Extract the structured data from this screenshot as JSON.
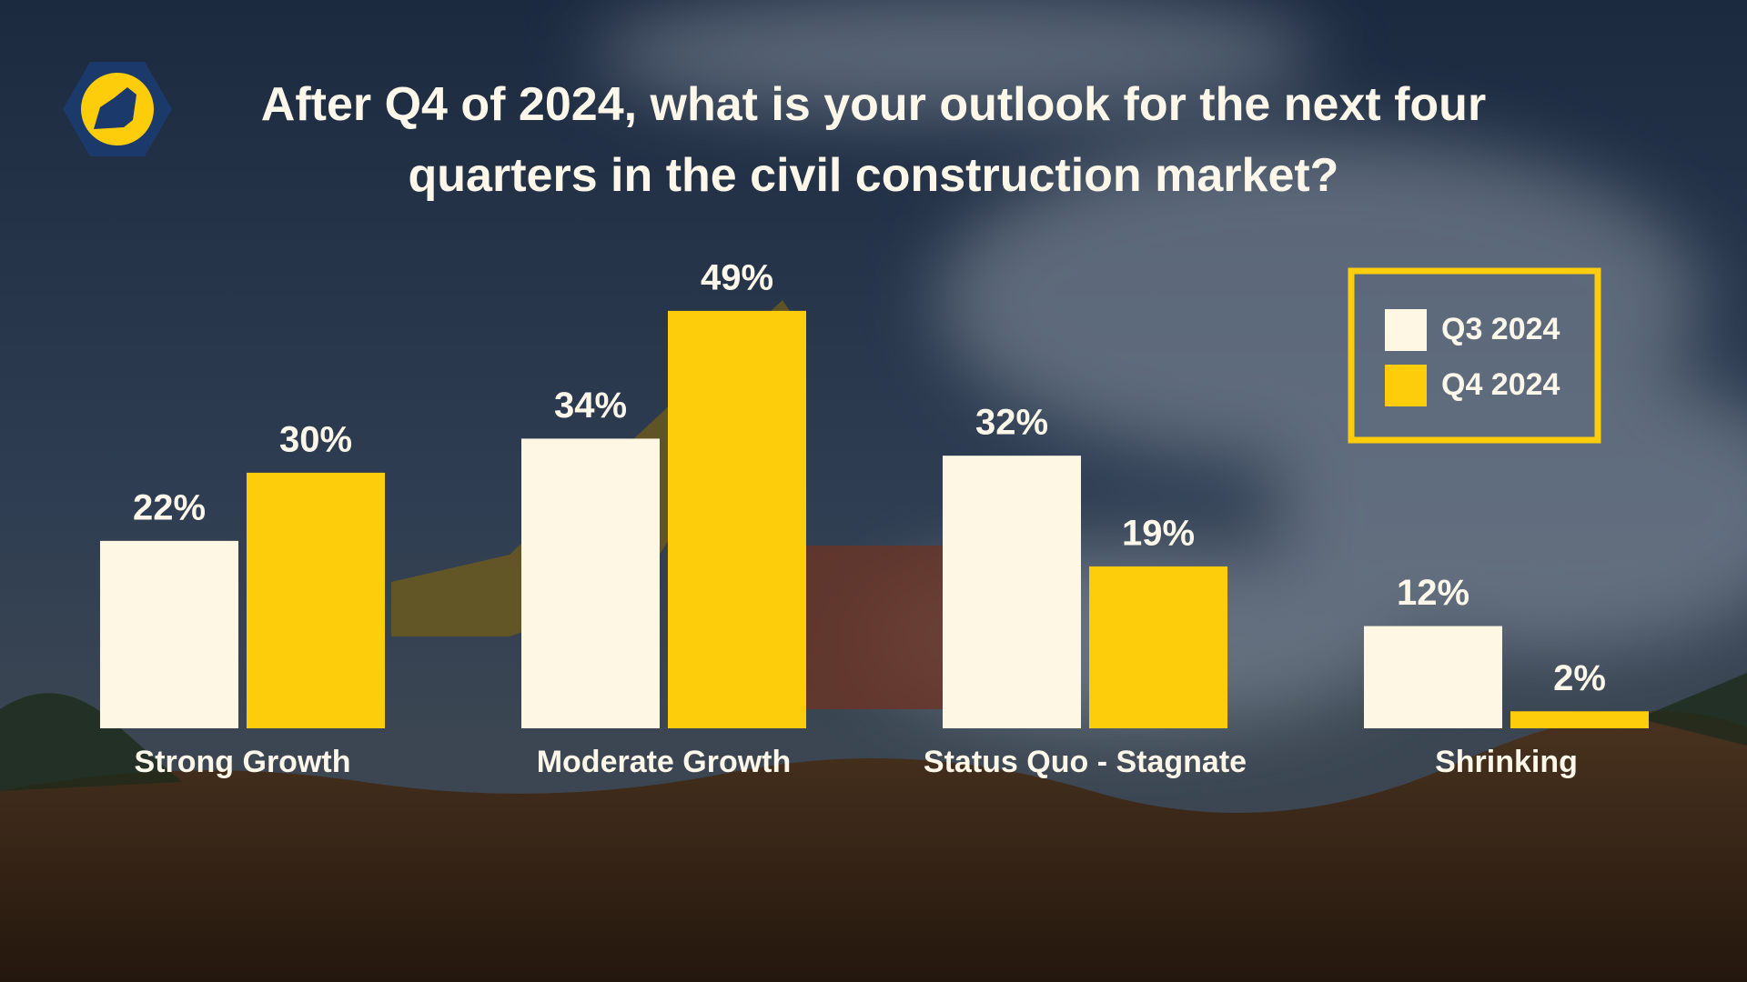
{
  "chart_data": {
    "type": "bar",
    "title": "After Q4 of 2024, what is your outlook for the next four quarters in the civil construction market?",
    "categories": [
      "Strong Growth",
      "Moderate Growth",
      "Status Quo - Stagnate",
      "Shrinking"
    ],
    "series": [
      {
        "name": "Q3 2024",
        "color": "#fef7e4",
        "values": [
          22,
          34,
          32,
          12
        ],
        "value_labels": [
          "22%",
          "34%",
          "32%",
          "12%"
        ]
      },
      {
        "name": "Q4 2024",
        "color": "#fdcc0a",
        "values": [
          30,
          49,
          19,
          2
        ],
        "value_labels": [
          "30%",
          "49%",
          "19%",
          "2%"
        ]
      }
    ],
    "legend": "upper-right"
  }
}
